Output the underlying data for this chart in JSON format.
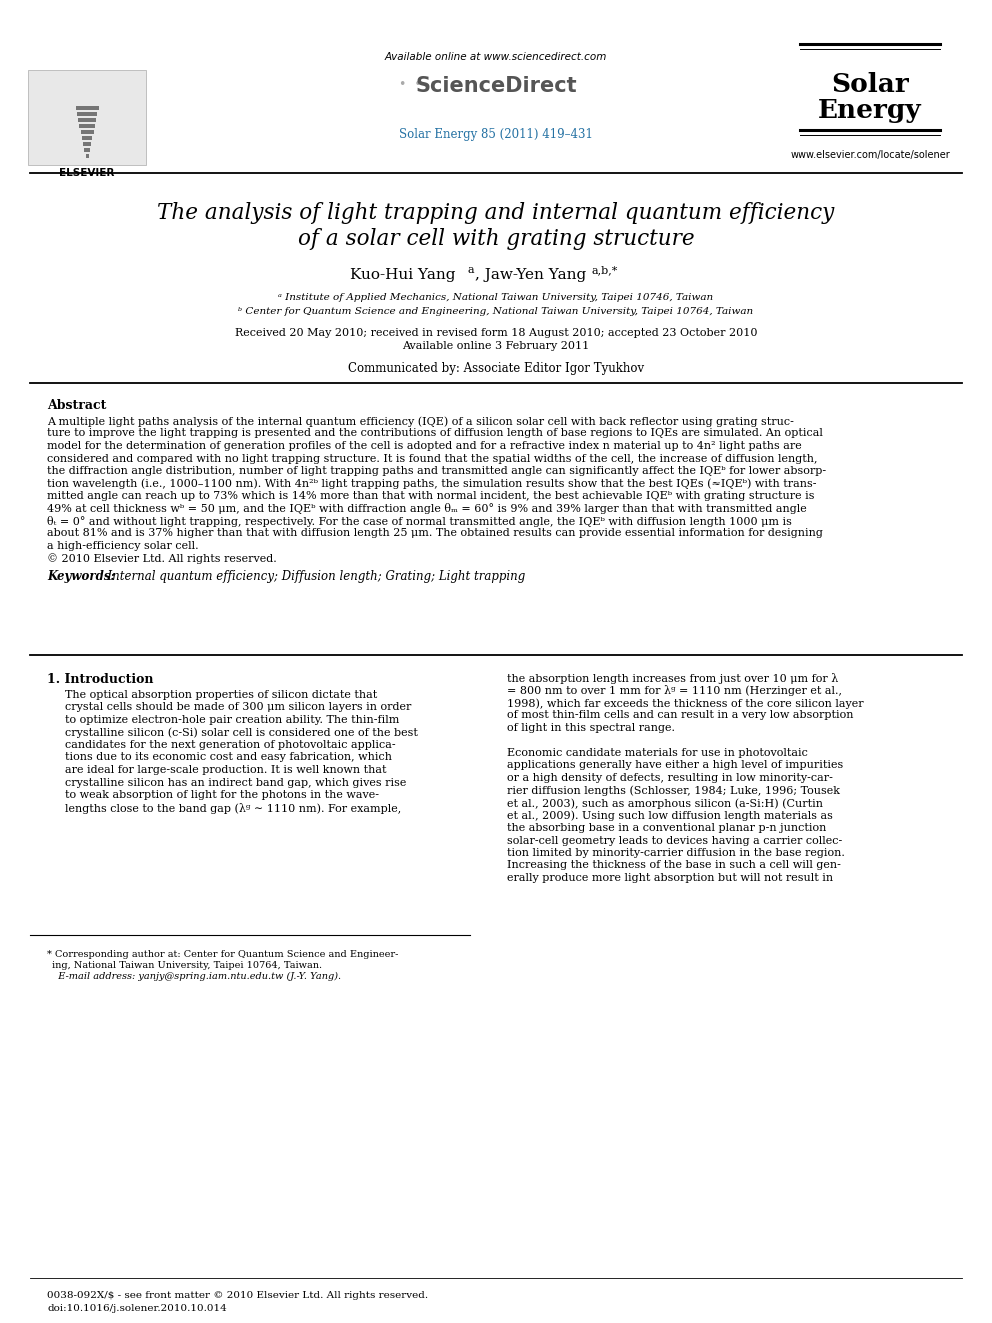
{
  "bg_color": "#ffffff",
  "elsevier_text": "ELSEVIER",
  "available_online": "Available online at www.sciencedirect.com",
  "journal_ref": "Solar Energy 85 (2011) 419–431",
  "journal_url": "www.elsevier.com/locate/solener",
  "title_line1": "The analysis of light trapping and internal quantum efficiency",
  "title_line2": "of a solar cell with grating structure",
  "affil_a": "ᵃ Institute of Applied Mechanics, National Taiwan University, Taipei 10746, Taiwan",
  "affil_b": "ᵇ Center for Quantum Science and Engineering, National Taiwan University, Taipei 10764, Taiwan",
  "received": "Received 20 May 2010; received in revised form 18 August 2010; accepted 23 October 2010",
  "available_online2": "Available online 3 February 2011",
  "communicated": "Communicated by: Associate Editor Igor Tyukhov",
  "abstract_title": "Abstract",
  "keywords_label": "Keywords:",
  "keywords_text": "  Internal quantum efficiency; Diffusion length; Grating; Light trapping",
  "intro_title": "1. Introduction",
  "footer_text1": "0038-092X/$ - see front matter © 2010 Elsevier Ltd. All rights reserved.",
  "footer_text2": "doi:10.1016/j.solener.2010.10.014",
  "journal_ref_color": "#2471a3",
  "abstract_lines": [
    "A multiple light paths analysis of the internal quantum efficiency (IQE) of a silicon solar cell with back reflector using grating struc-",
    "ture to improve the light trapping is presented and the contributions of diffusion length of base regions to IQEs are simulated. An optical",
    "model for the determination of generation profiles of the cell is adopted and for a refractive index n material up to 4n² light paths are",
    "considered and compared with no light trapping structure. It is found that the spatial widths of the cell, the increase of diffusion length,",
    "the diffraction angle distribution, number of light trapping paths and transmitted angle can significantly affect the IQEᵇ for lower absorp-",
    "tion wavelength (i.e., 1000–1100 nm). With 4n²ᵇ light trapping paths, the simulation results show that the best IQEs (≈IQEᵇ) with trans-",
    "mitted angle can reach up to 73% which is 14% more than that with normal incident, the best achievable IQEᵇ with grating structure is",
    "49% at cell thickness wᵇ = 50 μm, and the IQEᵇ with diffraction angle θₘ = 60° is 9% and 39% larger than that with transmitted angle",
    "θₜ = 0° and without light trapping, respectively. For the case of normal transmitted angle, the IQEᵇ with diffusion length 1000 μm is",
    "about 81% and is 37% higher than that with diffusion length 25 μm. The obtained results can provide essential information for designing",
    "a high-efficiency solar cell.",
    "© 2010 Elsevier Ltd. All rights reserved."
  ],
  "intro_col1_lines": [
    "The optical absorption properties of silicon dictate that",
    "crystal cells should be made of 300 μm silicon layers in order",
    "to optimize electron-hole pair creation ability. The thin-film",
    "crystalline silicon (c-Si) solar cell is considered one of the best",
    "candidates for the next generation of photovoltaic applica-",
    "tions due to its economic cost and easy fabrication, which",
    "are ideal for large-scale production. It is well known that",
    "crystalline silicon has an indirect band gap, which gives rise",
    "to weak absorption of light for the photons in the wave-",
    "lengths close to the band gap (λᵍ ∼ 1110 nm). For example,"
  ],
  "intro_col2_lines": [
    "the absorption length increases from just over 10 μm for λ",
    "= 800 nm to over 1 mm for λᵍ = 1110 nm (Herzinger et al.,",
    "1998), which far exceeds the thickness of the core silicon layer",
    "of most thin-film cells and can result in a very low absorption",
    "of light in this spectral range.",
    "",
    "Economic candidate materials for use in photovoltaic",
    "applications generally have either a high level of impurities",
    "or a high density of defects, resulting in low minority-car-",
    "rier diffusion lengths (Schlosser, 1984; Luke, 1996; Tousek",
    "et al., 2003), such as amorphous silicon (a-Si:H) (Curtin",
    "et al., 2009). Using such low diffusion length materials as",
    "the absorbing base in a conventional planar p-n junction",
    "solar-cell geometry leads to devices having a carrier collec-",
    "tion limited by minority-carrier diffusion in the base region.",
    "Increasing the thickness of the base in such a cell will gen-",
    "erally produce more light absorption but will not result in"
  ],
  "footnote_lines": [
    "* Corresponding author at: Center for Quantum Science and Engineer-",
    "ing, National Taiwan University, Taipei 10764, Taiwan.",
    "  E-mail address: yanjy@spring.iam.ntu.edu.tw (J.-Y. Yang)."
  ]
}
